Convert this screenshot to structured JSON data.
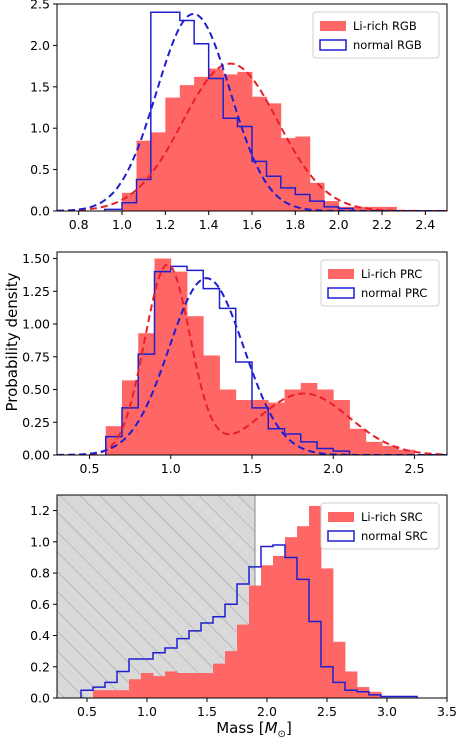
{
  "figure": {
    "xlabel": "Mass [$M_{\\odot}$]",
    "ylabel": "Probability density",
    "colors": {
      "hist_fill": "#ff6666",
      "fit_red": "#e8202a",
      "normal_blue": "#1f1fd0",
      "shade": "#d9d9d9"
    }
  },
  "chart_data": [
    {
      "type": "histogram",
      "legend": [
        "Li-rich RGB",
        "normal RGB"
      ],
      "legend_position": "top-right",
      "xlim": [
        0.7,
        2.5
      ],
      "ylim": [
        0,
        2.5
      ],
      "xticks": [
        "0.8",
        "1.0",
        "1.2",
        "1.4",
        "1.6",
        "1.8",
        "2.0",
        "2.2",
        "2.4"
      ],
      "yticks": [
        "0.0",
        "0.5",
        "1.0",
        "1.5",
        "2.0",
        "2.5"
      ],
      "series": [
        {
          "name": "Li-rich RGB",
          "style": "filled",
          "edges": [
            1.0,
            1.067,
            1.133,
            1.2,
            1.267,
            1.333,
            1.4,
            1.467,
            1.533,
            1.6,
            1.667,
            1.733,
            1.8,
            1.867,
            1.933,
            2.0,
            2.067,
            2.133,
            2.2,
            2.267
          ],
          "values": [
            0.22,
            0.85,
            0.95,
            1.37,
            1.52,
            1.62,
            1.72,
            1.65,
            1.68,
            1.38,
            1.3,
            0.88,
            0.9,
            0.34,
            0.12,
            0.05,
            0.05,
            0.05,
            0.05
          ]
        },
        {
          "name": "normal RGB",
          "style": "step",
          "edges": [
            0.92,
            1.0,
            1.067,
            1.133,
            1.2,
            1.267,
            1.333,
            1.4,
            1.467,
            1.533,
            1.6,
            1.667,
            1.733,
            1.8,
            1.867,
            1.933,
            2.0,
            2.067
          ],
          "values": [
            0.02,
            0.1,
            0.38,
            2.4,
            2.4,
            2.3,
            2.02,
            1.6,
            1.12,
            1.02,
            0.6,
            0.42,
            0.28,
            0.2,
            0.12,
            0.05,
            0.03
          ]
        },
        {
          "name": "fit Li-rich RGB",
          "style": "dashed",
          "color": "red",
          "mu": 1.5,
          "sigma": 0.22,
          "peak": 1.78
        },
        {
          "name": "fit normal RGB",
          "style": "dashed",
          "color": "blue",
          "mu": 1.33,
          "sigma": 0.17,
          "peak": 2.38
        }
      ]
    },
    {
      "type": "histogram",
      "legend": [
        "Li-rich PRC",
        "normal PRC"
      ],
      "legend_position": "top-right",
      "xlim": [
        0.3,
        2.7
      ],
      "ylim": [
        0,
        1.55
      ],
      "xticks": [
        "0.5",
        "1.0",
        "1.5",
        "2.0",
        "2.5"
      ],
      "yticks": [
        "0.00",
        "0.25",
        "0.50",
        "0.75",
        "1.00",
        "1.25",
        "1.50"
      ],
      "series": [
        {
          "name": "Li-rich PRC",
          "style": "filled",
          "edges": [
            0.6,
            0.7,
            0.8,
            0.9,
            1.0,
            1.1,
            1.2,
            1.3,
            1.4,
            1.5,
            1.6,
            1.7,
            1.8,
            1.9,
            2.0,
            2.1,
            2.2,
            2.3,
            2.4,
            2.5
          ],
          "values": [
            0.22,
            0.57,
            0.93,
            1.5,
            1.4,
            1.06,
            0.76,
            0.5,
            0.42,
            0.42,
            0.4,
            0.5,
            0.55,
            0.5,
            0.42,
            0.2,
            0.1,
            0.07,
            0.04
          ]
        },
        {
          "name": "normal PRC",
          "style": "step",
          "edges": [
            0.6,
            0.7,
            0.8,
            0.9,
            1.0,
            1.1,
            1.2,
            1.3,
            1.4,
            1.5,
            1.6,
            1.7,
            1.8,
            1.9,
            2.0,
            2.1
          ],
          "values": [
            0.14,
            0.36,
            0.77,
            1.4,
            1.44,
            1.41,
            1.27,
            1.12,
            0.71,
            0.36,
            0.2,
            0.16,
            0.1,
            0.05,
            0.03
          ]
        },
        {
          "name": "fit Li-rich PRC",
          "style": "dashed",
          "color": "red",
          "components": [
            {
              "mu": 0.98,
              "sigma": 0.14,
              "peak": 1.45
            },
            {
              "mu": 1.82,
              "sigma": 0.28,
              "peak": 0.47
            }
          ]
        },
        {
          "name": "fit normal PRC",
          "style": "dashed",
          "color": "blue",
          "components": [
            {
              "mu": 1.22,
              "sigma": 0.23,
              "peak": 1.35
            }
          ]
        }
      ]
    },
    {
      "type": "histogram",
      "legend": [
        "Li-rich SRC",
        "normal SRC"
      ],
      "legend_position": "top-right",
      "xlim": [
        0.25,
        3.5
      ],
      "ylim": [
        0,
        1.3
      ],
      "xticks": [
        "0.5",
        "1.0",
        "1.5",
        "2.0",
        "2.5",
        "3.0",
        "3.5"
      ],
      "yticks": [
        "0.0",
        "0.2",
        "0.4",
        "0.6",
        "0.8",
        "1.0",
        "1.2"
      ],
      "hatched_region_x": [
        0.25,
        1.9
      ],
      "series": [
        {
          "name": "Li-rich SRC",
          "style": "filled",
          "edges": [
            0.55,
            0.65,
            0.75,
            0.85,
            0.95,
            1.05,
            1.15,
            1.25,
            1.35,
            1.45,
            1.55,
            1.65,
            1.75,
            1.85,
            1.95,
            2.05,
            2.15,
            2.25,
            2.35,
            2.45,
            2.55,
            2.65,
            2.75,
            2.85,
            2.95
          ],
          "values": [
            0.05,
            0.05,
            0.05,
            0.12,
            0.16,
            0.14,
            0.17,
            0.16,
            0.16,
            0.16,
            0.22,
            0.3,
            0.47,
            0.72,
            0.85,
            0.91,
            1.03,
            1.1,
            1.23,
            0.83,
            0.36,
            0.17,
            0.07,
            0.04
          ]
        },
        {
          "name": "normal SRC",
          "style": "step",
          "edges": [
            0.45,
            0.55,
            0.65,
            0.75,
            0.85,
            0.95,
            1.05,
            1.15,
            1.25,
            1.35,
            1.45,
            1.55,
            1.65,
            1.75,
            1.85,
            1.95,
            2.05,
            2.15,
            2.25,
            2.35,
            2.45,
            2.55,
            2.65,
            2.75,
            2.85,
            2.95,
            3.05,
            3.15,
            3.25
          ],
          "values": [
            0.05,
            0.07,
            0.1,
            0.17,
            0.25,
            0.25,
            0.29,
            0.32,
            0.38,
            0.43,
            0.48,
            0.52,
            0.6,
            0.73,
            0.84,
            0.97,
            0.98,
            0.9,
            0.76,
            0.49,
            0.2,
            0.1,
            0.05,
            0.04,
            0.02,
            0.01,
            0.01,
            0.01
          ]
        }
      ]
    }
  ]
}
